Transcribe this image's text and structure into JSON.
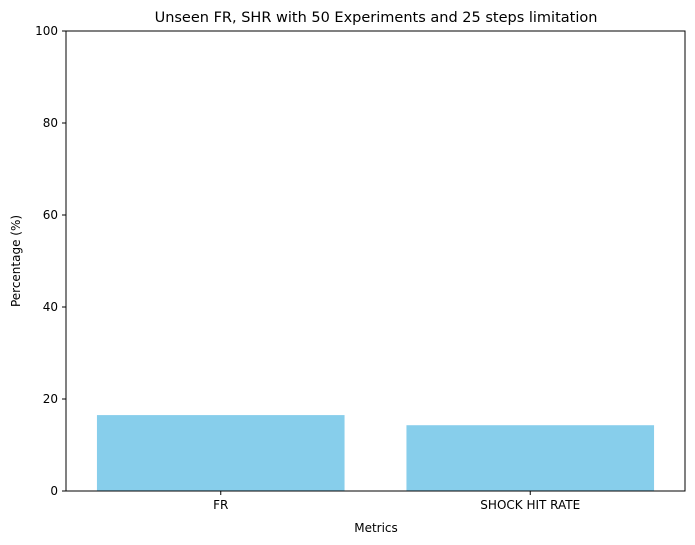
{
  "chart_data": {
    "type": "bar",
    "title": "Unseen FR, SHR with 50 Experiments and 25 steps limitation",
    "xlabel": "Metrics",
    "ylabel": "Percentage (%)",
    "categories": [
      "FR",
      "SHOCK HIT RATE"
    ],
    "values": [
      16.5,
      14.3
    ],
    "ylim": [
      0,
      100
    ],
    "yticks": [
      0,
      20,
      40,
      60,
      80,
      100
    ],
    "bar_color": "#87ceeb",
    "grid": false,
    "legend": "none"
  }
}
